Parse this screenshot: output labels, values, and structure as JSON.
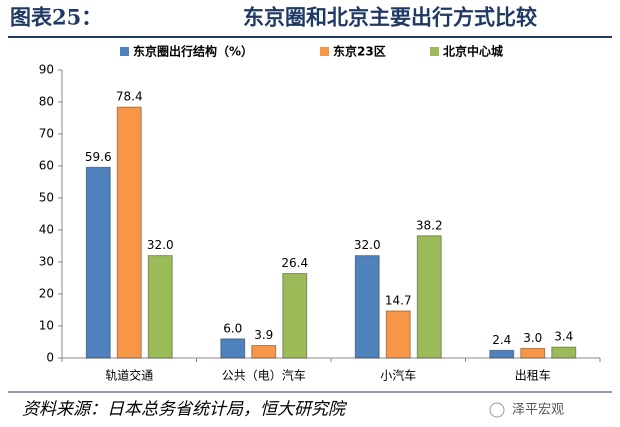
{
  "figure_label": "图表25：",
  "chart_data": {
    "type": "bar",
    "title": "东京圈和北京主要出行方式比较",
    "categories": [
      "轨道交通",
      "公共（电）汽车",
      "小汽车",
      "出租车"
    ],
    "series": [
      {
        "name": "东京圈出行结构（%）",
        "color": "#4f81bd",
        "values": [
          59.6,
          6.0,
          32.0,
          2.4
        ],
        "value_labels": [
          "59.6",
          "6.0",
          "32.0",
          "2.4"
        ]
      },
      {
        "name": "东京23区",
        "color": "#f79646",
        "values": [
          78.4,
          3.9,
          14.7,
          3.0
        ],
        "value_labels": [
          "78.4",
          "3.9",
          "14.7",
          "3.0"
        ]
      },
      {
        "name": "北京中心城",
        "color": "#9bbb59",
        "values": [
          32.0,
          26.4,
          38.2,
          3.4
        ],
        "value_labels": [
          "32.0",
          "26.4",
          "38.2",
          "3.4"
        ]
      }
    ],
    "ylim": [
      0,
      90
    ],
    "yticks": [
      0,
      10,
      20,
      30,
      40,
      50,
      60,
      70,
      80,
      90
    ],
    "grid": false,
    "legend": "top"
  },
  "source": "资料来源：日本总务省统计局，恒大研究院",
  "watermark": "泽平宏观"
}
